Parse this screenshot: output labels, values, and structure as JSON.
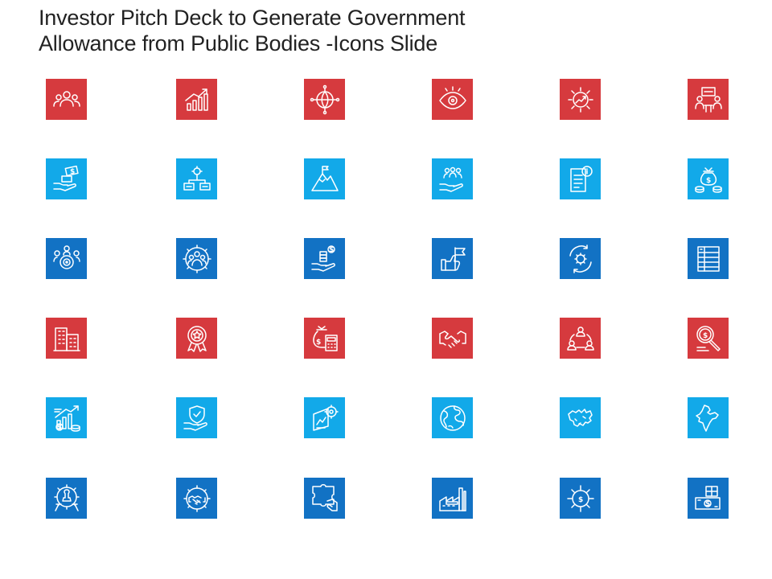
{
  "slide": {
    "title_line1": "Investor Pitch Deck to Generate Government",
    "title_line2": "Allowance from Public Bodies -Icons Slide"
  },
  "colors": {
    "red": "#d63a3e",
    "sky": "#12a9e9",
    "blue": "#1272c4"
  },
  "rows": [
    {
      "color": "red",
      "icons": [
        "team-icon",
        "growth-chart-icon",
        "global-network-icon",
        "vision-eye-icon",
        "growth-gear-icon",
        "meeting-presentation-icon"
      ]
    },
    {
      "color": "sky",
      "icons": [
        "hand-money-icon",
        "gear-hierarchy-icon",
        "mountain-flag-icon",
        "hand-team-icon",
        "document-info-icon",
        "money-bag-coins-icon"
      ]
    },
    {
      "color": "blue",
      "icons": [
        "team-target-icon",
        "gear-team-icon",
        "hand-money-stack-icon",
        "hand-flag-icon",
        "gear-cycle-icon",
        "ledger-icon"
      ]
    },
    {
      "color": "red",
      "icons": [
        "office-building-icon",
        "award-badge-icon",
        "money-bag-calculator-icon",
        "handshake-icon",
        "network-users-icon",
        "dollar-magnifier-icon"
      ]
    },
    {
      "color": "sky",
      "icons": [
        "finance-chart-icon",
        "shield-hand-icon",
        "settings-monitor-icon",
        "globe-icon",
        "canada-map-icon",
        "india-map-icon"
      ]
    },
    {
      "color": "blue",
      "icons": [
        "gear-chess-icon",
        "gear-handshake-icon",
        "puzzle-hand-icon",
        "factory-icon",
        "dollar-gear-icon",
        "money-box-icon"
      ]
    }
  ]
}
